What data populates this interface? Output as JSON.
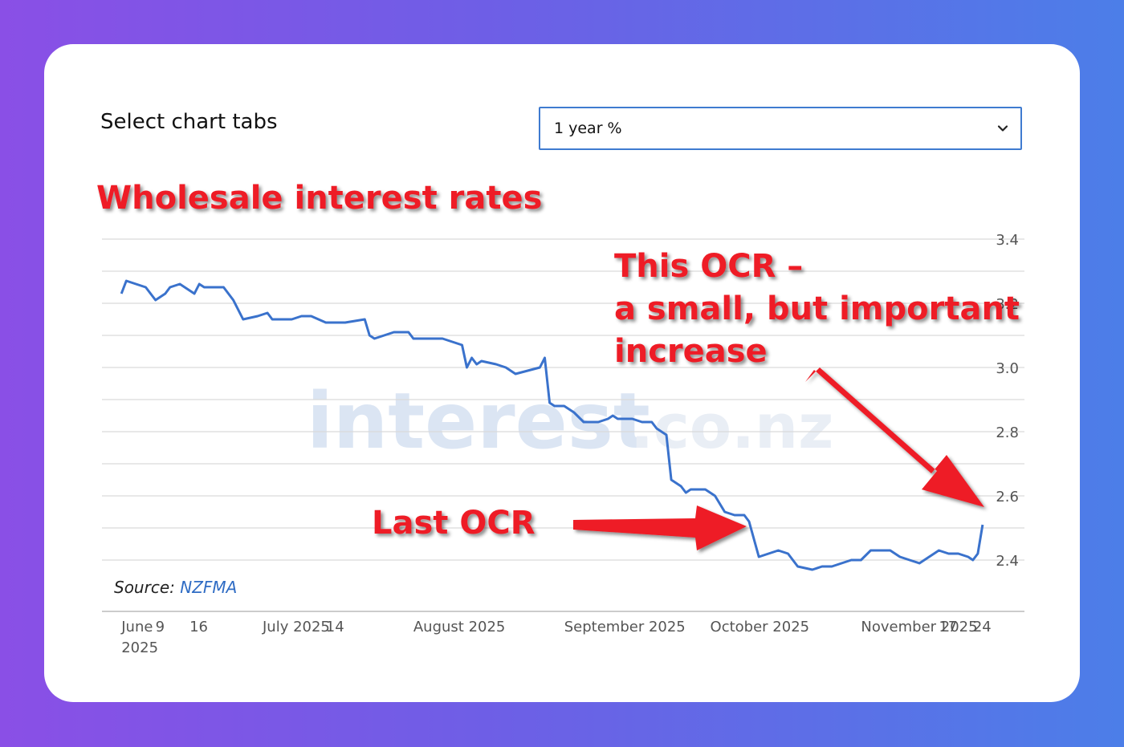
{
  "header": {
    "tabs_label": "Select chart tabs"
  },
  "select": {
    "value": "1 year %"
  },
  "source": {
    "label": "Source:",
    "link_text": "NZFMA"
  },
  "watermark": {
    "text": "interest",
    "suffix": ".co.nz"
  },
  "annotations": {
    "title": "Wholesale interest rates",
    "this_ocr_lines": [
      "This OCR –",
      "a small, but important",
      "increase"
    ],
    "last_ocr": "Last OCR",
    "arrow_color": "#ee1c25"
  },
  "colors": {
    "line": "#3a72cc",
    "grid": "#d9d9d9",
    "axis_text": "#555555"
  },
  "chart_data": {
    "type": "line",
    "title": "Wholesale interest rates",
    "ylabel": "%",
    "ylim": [
      2.4,
      3.4
    ],
    "yticks": [
      3.4,
      3.2,
      3.0,
      2.8,
      2.6,
      2.4
    ],
    "ytick_labels": [
      "3.4",
      "3.2",
      "3.0",
      "2.8",
      "2.6",
      "2.4"
    ],
    "xlim": [
      "2025-05-29",
      "2025-11-27"
    ],
    "xticks": [
      {
        "date": "2025-06-02",
        "label": "June",
        "label2": "2025"
      },
      {
        "date": "2025-06-09",
        "label": "9"
      },
      {
        "date": "2025-06-16",
        "label": "16"
      },
      {
        "date": "2025-07-01",
        "label": "July 2025"
      },
      {
        "date": "2025-07-14",
        "label": "14"
      },
      {
        "date": "2025-08-01",
        "label": "August 2025"
      },
      {
        "date": "2025-09-01",
        "label": "September 2025"
      },
      {
        "date": "2025-10-01",
        "label": "October 2025"
      },
      {
        "date": "2025-11-01",
        "label": "November 2025"
      },
      {
        "date": "2025-11-17",
        "label": "17"
      },
      {
        "date": "2025-11-24",
        "label": "24"
      }
    ],
    "grid": true,
    "series": [
      {
        "color": "#3a72cc",
        "points": [
          [
            "2025-06-02",
            3.23
          ],
          [
            "2025-06-03",
            3.27
          ],
          [
            "2025-06-05",
            3.26
          ],
          [
            "2025-06-07",
            3.25
          ],
          [
            "2025-06-09",
            3.21
          ],
          [
            "2025-06-11",
            3.23
          ],
          [
            "2025-06-12",
            3.25
          ],
          [
            "2025-06-14",
            3.26
          ],
          [
            "2025-06-16",
            3.24
          ],
          [
            "2025-06-17",
            3.23
          ],
          [
            "2025-06-18",
            3.26
          ],
          [
            "2025-06-19",
            3.25
          ],
          [
            "2025-06-20",
            3.25
          ],
          [
            "2025-06-23",
            3.25
          ],
          [
            "2025-06-25",
            3.21
          ],
          [
            "2025-06-27",
            3.15
          ],
          [
            "2025-06-30",
            3.16
          ],
          [
            "2025-07-02",
            3.17
          ],
          [
            "2025-07-03",
            3.15
          ],
          [
            "2025-07-07",
            3.15
          ],
          [
            "2025-07-09",
            3.16
          ],
          [
            "2025-07-11",
            3.16
          ],
          [
            "2025-07-14",
            3.14
          ],
          [
            "2025-07-18",
            3.14
          ],
          [
            "2025-07-22",
            3.15
          ],
          [
            "2025-07-23",
            3.1
          ],
          [
            "2025-07-24",
            3.09
          ],
          [
            "2025-07-28",
            3.11
          ],
          [
            "2025-07-31",
            3.11
          ],
          [
            "2025-08-01",
            3.09
          ],
          [
            "2025-08-07",
            3.09
          ],
          [
            "2025-08-11",
            3.07
          ],
          [
            "2025-08-12",
            3.0
          ],
          [
            "2025-08-13",
            3.03
          ],
          [
            "2025-08-14",
            3.01
          ],
          [
            "2025-08-15",
            3.02
          ],
          [
            "2025-08-18",
            3.01
          ],
          [
            "2025-08-20",
            3.0
          ],
          [
            "2025-08-22",
            2.98
          ],
          [
            "2025-08-27",
            3.0
          ],
          [
            "2025-08-28",
            3.03
          ],
          [
            "2025-08-29",
            2.89
          ],
          [
            "2025-08-30",
            2.88
          ],
          [
            "2025-09-01",
            2.88
          ],
          [
            "2025-09-03",
            2.86
          ],
          [
            "2025-09-05",
            2.83
          ],
          [
            "2025-09-08",
            2.83
          ],
          [
            "2025-09-10",
            2.84
          ],
          [
            "2025-09-11",
            2.85
          ],
          [
            "2025-09-12",
            2.84
          ],
          [
            "2025-09-15",
            2.84
          ],
          [
            "2025-09-17",
            2.83
          ],
          [
            "2025-09-19",
            2.83
          ],
          [
            "2025-09-20",
            2.81
          ],
          [
            "2025-09-22",
            2.79
          ],
          [
            "2025-09-23",
            2.65
          ],
          [
            "2025-09-25",
            2.63
          ],
          [
            "2025-09-26",
            2.61
          ],
          [
            "2025-09-27",
            2.62
          ],
          [
            "2025-09-30",
            2.62
          ],
          [
            "2025-10-02",
            2.6
          ],
          [
            "2025-10-04",
            2.55
          ],
          [
            "2025-10-06",
            2.54
          ],
          [
            "2025-10-08",
            2.54
          ],
          [
            "2025-10-09",
            2.52
          ],
          [
            "2025-10-11",
            2.41
          ],
          [
            "2025-10-13",
            2.42
          ],
          [
            "2025-10-15",
            2.43
          ],
          [
            "2025-10-17",
            2.42
          ],
          [
            "2025-10-19",
            2.38
          ],
          [
            "2025-10-22",
            2.37
          ],
          [
            "2025-10-24",
            2.38
          ],
          [
            "2025-10-26",
            2.38
          ],
          [
            "2025-10-28",
            2.39
          ],
          [
            "2025-10-30",
            2.4
          ],
          [
            "2025-11-01",
            2.4
          ],
          [
            "2025-11-03",
            2.43
          ],
          [
            "2025-11-05",
            2.43
          ],
          [
            "2025-11-07",
            2.43
          ],
          [
            "2025-11-09",
            2.41
          ],
          [
            "2025-11-11",
            2.4
          ],
          [
            "2025-11-13",
            2.39
          ],
          [
            "2025-11-15",
            2.41
          ],
          [
            "2025-11-17",
            2.43
          ],
          [
            "2025-11-19",
            2.42
          ],
          [
            "2025-11-21",
            2.42
          ],
          [
            "2025-11-23",
            2.41
          ],
          [
            "2025-11-24",
            2.4
          ],
          [
            "2025-11-25",
            2.42
          ],
          [
            "2025-11-26",
            2.51
          ]
        ]
      }
    ]
  }
}
